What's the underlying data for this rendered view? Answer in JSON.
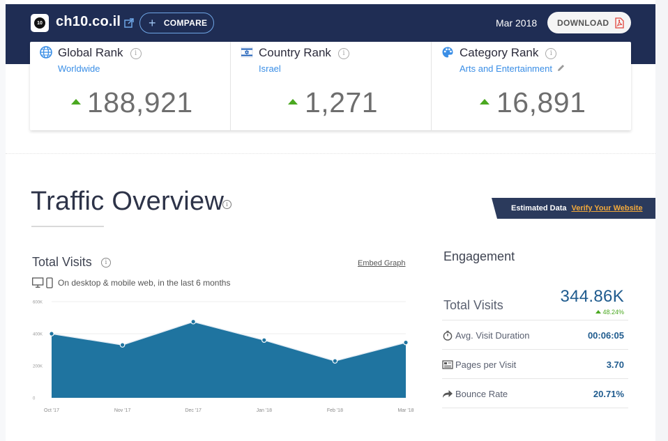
{
  "header": {
    "site_logo_text": "10",
    "site_name": "ch10.co.il",
    "compare_label": "COMPARE",
    "date": "Mar 2018",
    "download_label": "DOWNLOAD"
  },
  "ranks": [
    {
      "title": "Global Rank",
      "subtitle": "Worldwide",
      "value": "188,921",
      "trend": "up",
      "icon": "globe-icon"
    },
    {
      "title": "Country Rank",
      "subtitle": "Israel",
      "value": "1,271",
      "trend": "up",
      "icon": "israel-flag-icon"
    },
    {
      "title": "Category Rank",
      "subtitle": "Arts and Entertainment",
      "value": "16,891",
      "trend": "up",
      "icon": "palette-icon"
    }
  ],
  "traffic_overview": {
    "title": "Traffic Overview",
    "estimated_label": "Estimated Data",
    "verify_label": "Verify Your Website"
  },
  "total_visits_chart": {
    "title": "Total Visits",
    "embed_label": "Embed Graph",
    "subtitle": "On desktop & mobile web, in the last 6 months"
  },
  "engagement": {
    "title": "Engagement",
    "total_visits_label": "Total Visits",
    "total_visits_value": "344.86K",
    "total_visits_change": "48.24%",
    "rows": [
      {
        "label": "Avg. Visit Duration",
        "value": "00:06:05",
        "icon": "stopwatch-icon"
      },
      {
        "label": "Pages per Visit",
        "value": "3.70",
        "icon": "pages-icon"
      },
      {
        "label": "Bounce Rate",
        "value": "20.71%",
        "icon": "bounce-arrow-icon"
      }
    ]
  },
  "colors": {
    "header_bg": "#1f2d54",
    "accent_blue": "#3a8ee6",
    "chart_fill": "#1f74a0",
    "trend_up": "#4aa820",
    "banner_bg": "#2b3a5c",
    "verify_link": "#f2a93b"
  },
  "chart_data": {
    "type": "area",
    "categories": [
      "Oct '17",
      "Nov '17",
      "Dec '17",
      "Jan '18",
      "Feb '18",
      "Mar '18"
    ],
    "values": [
      400000,
      330000,
      475000,
      360000,
      230000,
      345000
    ],
    "ylim": [
      0,
      600000
    ],
    "yticks": [
      "0",
      "200K",
      "400K",
      "600K"
    ],
    "ytick_values": [
      0,
      200000,
      400000,
      600000
    ],
    "grid": true,
    "legend": "none"
  }
}
